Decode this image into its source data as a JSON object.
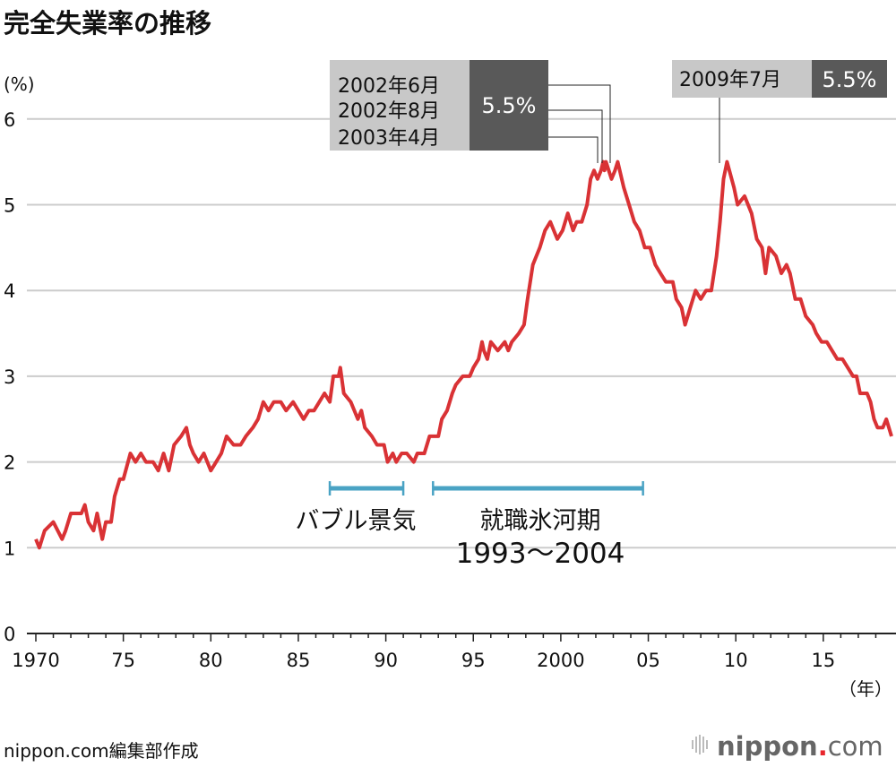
{
  "title": "完全失業率の推移",
  "unit_label": "(%)",
  "x_unit_label": "（年）",
  "credit": "nippon.com編集部作成",
  "logo": "nippon.com",
  "colors": {
    "line": "#d93235",
    "grid": "#cccccc",
    "period_bar": "#4aa3c4",
    "label_bg": "#c8c8c8",
    "value_bg": "#595959"
  },
  "annotations": [
    {
      "labels": [
        "2002年6月",
        "2002年8月",
        "2003年4月"
      ],
      "targets": [
        2002.42,
        2002.58,
        2003.25
      ],
      "value": "5.5%"
    },
    {
      "labels": [
        "2009年7月"
      ],
      "targets": [
        2009.5
      ],
      "value": "5.5%"
    }
  ],
  "periods": [
    {
      "label": "バブル景気",
      "sub": "",
      "start": 1986.9,
      "end": 1991.1
    },
    {
      "label": "就職氷河期",
      "sub": "1993〜2004",
      "start": 1992.8,
      "end": 2004.8
    }
  ],
  "chart_data": {
    "type": "line",
    "title": "完全失業率の推移",
    "ylabel": "(%)",
    "xlabel": "（年）",
    "ylim": [
      0,
      6.2
    ],
    "xlim": [
      1969.9,
      2018.9
    ],
    "grid": true,
    "yticks": [
      0,
      1,
      2,
      3,
      4,
      5,
      6
    ],
    "xticks": [
      1970,
      1975,
      1980,
      1985,
      1990,
      1995,
      2000,
      2005,
      2010,
      2015
    ],
    "xtick_labels": [
      "1970",
      "75",
      "80",
      "85",
      "90",
      "95",
      "2000",
      "05",
      "10",
      "15"
    ],
    "x": [
      1970,
      1970.2,
      1970.5,
      1971,
      1971.5,
      1971.7,
      1972,
      1972.6,
      1972.8,
      1973,
      1973.3,
      1973.5,
      1973.8,
      1974,
      1974.3,
      1974.5,
      1974.8,
      1975,
      1975.4,
      1975.7,
      1976,
      1976.3,
      1976.7,
      1977,
      1977.3,
      1977.6,
      1977.9,
      1978.3,
      1978.6,
      1978.8,
      1979,
      1979.3,
      1979.6,
      1980,
      1980.3,
      1980.6,
      1980.9,
      1981.3,
      1981.7,
      1982,
      1982.4,
      1982.7,
      1983,
      1983.3,
      1983.6,
      1984,
      1984.3,
      1984.7,
      1985,
      1985.3,
      1985.6,
      1985.9,
      1986.2,
      1986.5,
      1986.8,
      1987,
      1987.3,
      1987.4,
      1987.6,
      1988,
      1988.4,
      1988.6,
      1988.8,
      1989.2,
      1989.5,
      1989.9,
      1990.1,
      1990.4,
      1990.6,
      1990.9,
      1991.2,
      1991.6,
      1991.8,
      1992.2,
      1992.5,
      1993,
      1993.2,
      1993.5,
      1993.8,
      1994,
      1994.4,
      1994.8,
      1995,
      1995.3,
      1995.5,
      1995.6,
      1995.8,
      1996,
      1996.4,
      1996.8,
      1997,
      1997.2,
      1997.6,
      1997.9,
      1998.1,
      1998.4,
      1998.6,
      1998.8,
      1999.1,
      1999.4,
      1999.6,
      1999.8,
      2000.1,
      2000.4,
      2000.7,
      2000.9,
      2001.2,
      2001.5,
      2001.7,
      2001.9,
      2002.1,
      2002.3,
      2002.42,
      2002.5,
      2002.58,
      2002.9,
      2003.1,
      2003.25,
      2003.6,
      2003.9,
      2004.2,
      2004.5,
      2004.8,
      2005.1,
      2005.4,
      2005.7,
      2006,
      2006.4,
      2006.6,
      2006.9,
      2007.1,
      2007.4,
      2007.7,
      2008,
      2008.3,
      2008.6,
      2008.9,
      2009.1,
      2009.3,
      2009.5,
      2009.9,
      2010.1,
      2010.5,
      2010.9,
      2011.2,
      2011.5,
      2011.7,
      2011.9,
      2012.3,
      2012.6,
      2012.9,
      2013.1,
      2013.4,
      2013.7,
      2014,
      2014.4,
      2014.6,
      2014.9,
      2015.2,
      2015.5,
      2015.8,
      2016.1,
      2016.4,
      2016.7,
      2016.9,
      2017.1,
      2017.3,
      2017.5,
      2017.7,
      2017.9,
      2018.1,
      2018.4,
      2018.6,
      2018.9
    ],
    "values": [
      1.1,
      1.0,
      1.2,
      1.3,
      1.1,
      1.2,
      1.4,
      1.4,
      1.5,
      1.3,
      1.2,
      1.4,
      1.1,
      1.3,
      1.3,
      1.6,
      1.8,
      1.8,
      2.1,
      2.0,
      2.1,
      2.0,
      2.0,
      1.9,
      2.1,
      1.9,
      2.2,
      2.3,
      2.4,
      2.2,
      2.1,
      2.0,
      2.1,
      1.9,
      2.0,
      2.1,
      2.3,
      2.2,
      2.2,
      2.3,
      2.4,
      2.5,
      2.7,
      2.6,
      2.7,
      2.7,
      2.6,
      2.7,
      2.6,
      2.5,
      2.6,
      2.6,
      2.7,
      2.8,
      2.7,
      3.0,
      3.0,
      3.1,
      2.8,
      2.7,
      2.5,
      2.6,
      2.4,
      2.3,
      2.2,
      2.2,
      2.0,
      2.1,
      2.0,
      2.1,
      2.1,
      2.0,
      2.1,
      2.1,
      2.3,
      2.3,
      2.5,
      2.6,
      2.8,
      2.9,
      3.0,
      3.0,
      3.1,
      3.2,
      3.4,
      3.3,
      3.2,
      3.4,
      3.3,
      3.4,
      3.3,
      3.4,
      3.5,
      3.6,
      3.9,
      4.3,
      4.4,
      4.5,
      4.7,
      4.8,
      4.7,
      4.6,
      4.7,
      4.9,
      4.7,
      4.8,
      4.8,
      5.0,
      5.3,
      5.4,
      5.3,
      5.4,
      5.5,
      5.4,
      5.5,
      5.3,
      5.4,
      5.5,
      5.2,
      5.0,
      4.8,
      4.7,
      4.5,
      4.5,
      4.3,
      4.2,
      4.1,
      4.1,
      3.9,
      3.8,
      3.6,
      3.8,
      4.0,
      3.9,
      4.0,
      4.0,
      4.4,
      4.8,
      5.3,
      5.5,
      5.2,
      5.0,
      5.1,
      4.9,
      4.6,
      4.5,
      4.2,
      4.5,
      4.4,
      4.2,
      4.3,
      4.2,
      3.9,
      3.9,
      3.7,
      3.6,
      3.5,
      3.4,
      3.4,
      3.3,
      3.2,
      3.2,
      3.1,
      3.0,
      3.0,
      2.8,
      2.8,
      2.8,
      2.7,
      2.5,
      2.4,
      2.4,
      2.5,
      2.3
    ]
  }
}
